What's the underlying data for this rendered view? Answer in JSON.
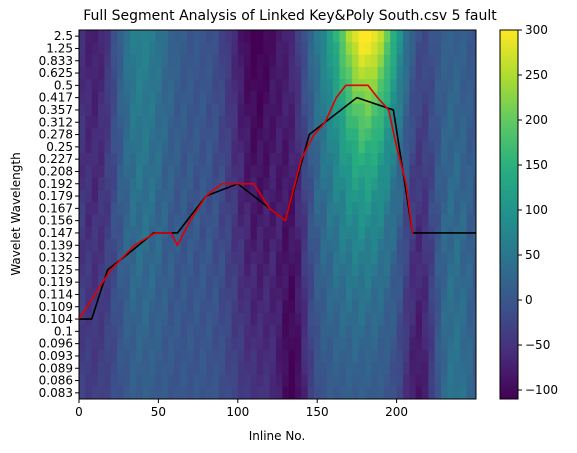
{
  "chart_data": {
    "type": "heatmap",
    "title": "Full Segment Analysis of Linked Key&Poly South.csv 5 fault",
    "xlabel": "Inline No.",
    "ylabel": "Wavelet Wavelength",
    "xlim": [
      0,
      250
    ],
    "x_ticks": [
      0,
      50,
      100,
      150,
      200
    ],
    "y_tick_labels": [
      "2.5",
      "1.25",
      "0.833",
      "0.625",
      "0.5",
      "0.417",
      "0.357",
      "0.312",
      "0.278",
      "0.25",
      "0.227",
      "0.208",
      "0.192",
      "0.179",
      "0.167",
      "0.156",
      "0.147",
      "0.139",
      "0.132",
      "0.125",
      "0.119",
      "0.114",
      "0.109",
      "0.104",
      "0.1",
      "0.096",
      "0.093",
      "0.089",
      "0.086",
      "0.083"
    ],
    "colorbar": {
      "colormap": "viridis",
      "vmin": -110,
      "vmax": 300,
      "ticks": [
        300,
        250,
        200,
        150,
        100,
        50,
        0,
        -50,
        -100
      ]
    },
    "series": [
      {
        "color": "#000000",
        "points": [
          {
            "x": 0,
            "y": "0.104"
          },
          {
            "x": 8,
            "y": "0.104"
          },
          {
            "x": 18,
            "y": "0.125"
          },
          {
            "x": 28,
            "y": "0.132"
          },
          {
            "x": 47,
            "y": "0.147"
          },
          {
            "x": 62,
            "y": "0.147"
          },
          {
            "x": 80,
            "y": "0.179"
          },
          {
            "x": 100,
            "y": "0.192"
          },
          {
            "x": 130,
            "y": "0.156"
          },
          {
            "x": 145,
            "y": "0.278"
          },
          {
            "x": 175,
            "y": "0.417"
          },
          {
            "x": 198,
            "y": "0.357"
          },
          {
            "x": 210,
            "y": "0.147"
          },
          {
            "x": 250,
            "y": "0.147"
          }
        ]
      },
      {
        "color": "#e00000",
        "points": [
          {
            "x": 0,
            "y": "0.104"
          },
          {
            "x": 10,
            "y": "0.114"
          },
          {
            "x": 20,
            "y": "0.125"
          },
          {
            "x": 35,
            "y": "0.139"
          },
          {
            "x": 48,
            "y": "0.147"
          },
          {
            "x": 58,
            "y": "0.147"
          },
          {
            "x": 62,
            "y": "0.139"
          },
          {
            "x": 70,
            "y": "0.156"
          },
          {
            "x": 80,
            "y": "0.179"
          },
          {
            "x": 90,
            "y": "0.192"
          },
          {
            "x": 100,
            "y": "0.192"
          },
          {
            "x": 110,
            "y": "0.192"
          },
          {
            "x": 120,
            "y": "0.167"
          },
          {
            "x": 130,
            "y": "0.156"
          },
          {
            "x": 140,
            "y": "0.227"
          },
          {
            "x": 148,
            "y": "0.278"
          },
          {
            "x": 155,
            "y": "0.312"
          },
          {
            "x": 162,
            "y": "0.417"
          },
          {
            "x": 168,
            "y": "0.5"
          },
          {
            "x": 175,
            "y": "0.5"
          },
          {
            "x": 182,
            "y": "0.5"
          },
          {
            "x": 188,
            "y": "0.417"
          },
          {
            "x": 195,
            "y": "0.357"
          },
          {
            "x": 200,
            "y": "0.25"
          },
          {
            "x": 206,
            "y": "0.192"
          },
          {
            "x": 210,
            "y": "0.147"
          }
        ]
      }
    ]
  }
}
